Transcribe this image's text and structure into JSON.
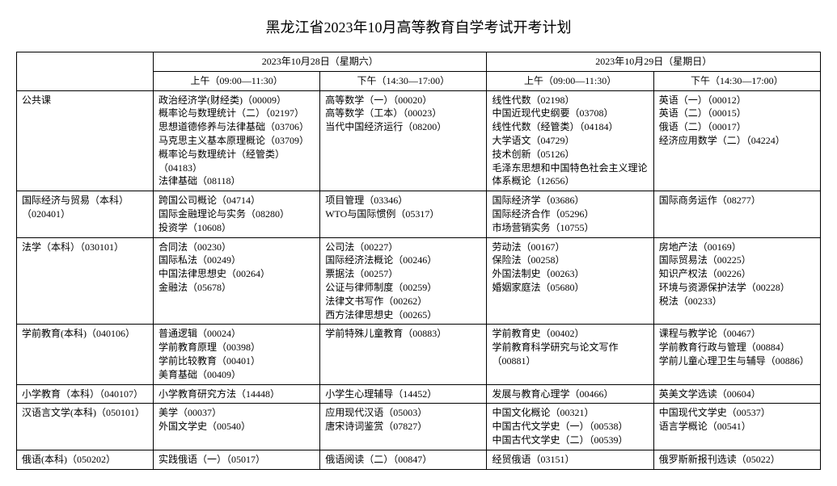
{
  "title": "黑龙江省2023年10月高等教育自学考试开考计划",
  "dates": [
    "2023年10月28日（星期六）",
    "2023年10月29日（星期日）"
  ],
  "sessions": [
    "上午（09:00—11:30）",
    "下午（14:30—17:00）",
    "上午（09:00—11:30）",
    "下午（14:30—17:00）"
  ],
  "rows": [
    {
      "major": "公共课",
      "cells": [
        "政治经济学(财经类)（00009）\n概率论与数理统计（二）（02197）\n思想道德修养与法律基础（03706）\n马克思主义基本原理概论（03709）\n概率论与数理统计（经管类）（04183）\n法律基础（08118）",
        "高等数学（一）（00020）\n高等数学（工本）（00023）\n当代中国经济运行（08200）",
        "线性代数（02198）\n中国近现代史纲要（03708）\n线性代数（经管类）（04184）\n大学语文（04729）\n技术创新（05126）\n毛泽东思想和中国特色社会主义理论体系概论（12656）",
        "英语（一）（00012）\n英语（二）（00015）\n俄语（二）（00017）\n经济应用数学（二）（04224）"
      ]
    },
    {
      "major": "国际经济与贸易（本科）（020401）",
      "cells": [
        "跨国公司概论（04714）\n国际金融理论与实务（08280）\n投资学（10608）",
        "项目管理（03346）\nWTO与国际惯例（05317）",
        "国际经济学（03686）\n国际经济合作（05296）\n市场营销实务（10755）",
        "国际商务运作（08277）"
      ]
    },
    {
      "major": "法学（本科）（030101）",
      "cells": [
        "合同法（00230）\n国际私法（00249）\n中国法律思想史（00264）\n金融法（05678）",
        "公司法（00227）\n国际经济法概论（00246）\n票据法（00257）\n公证与律师制度（00259）\n法律文书写作（00262）\n西方法律思想史（00265）",
        "劳动法（00167）\n保险法（00258）\n外国法制史（00263）\n婚姻家庭法（05680）",
        "房地产法（00169）\n国际贸易法（00225）\n知识产权法（00226）\n环境与资源保护法学（00228）\n税法（00233）"
      ]
    },
    {
      "major": "学前教育(本科)（040106）",
      "cells": [
        "普通逻辑（00024）\n学前教育原理（00398）\n学前比较教育（00401）\n美育基础（00409）",
        "学前特殊儿童教育（00883）",
        "学前教育史（00402）\n学前教育科学研究与论文写作（00881）",
        "课程与教学论（00467）\n学前教育行政与管理（00884）\n学前儿童心理卫生与辅导（00886）"
      ]
    },
    {
      "major": "小学教育（本科）（040107）",
      "cells": [
        "小学教育研究方法（14448）",
        "小学生心理辅导（14452）",
        "发展与教育心理学（00466）",
        "英美文学选读（00604）"
      ]
    },
    {
      "major": "汉语言文学(本科)（050101）",
      "cells": [
        "美学（00037）\n外国文学史（00540）",
        "应用现代汉语（05003）\n唐宋诗词鉴赏（07827）",
        "中国文化概论（00321）\n中国古代文学史（一）（00538）\n中国古代文学史（二）（00539）",
        "中国现代文学史（00537）\n语言学概论（00541）"
      ]
    },
    {
      "major": "俄语(本科)（050202）",
      "cells": [
        "实践俄语（一）（05017）",
        "俄语阅读（二）（00847）",
        "经贸俄语（03151）",
        "俄罗斯新报刊选读（05022）"
      ]
    }
  ]
}
